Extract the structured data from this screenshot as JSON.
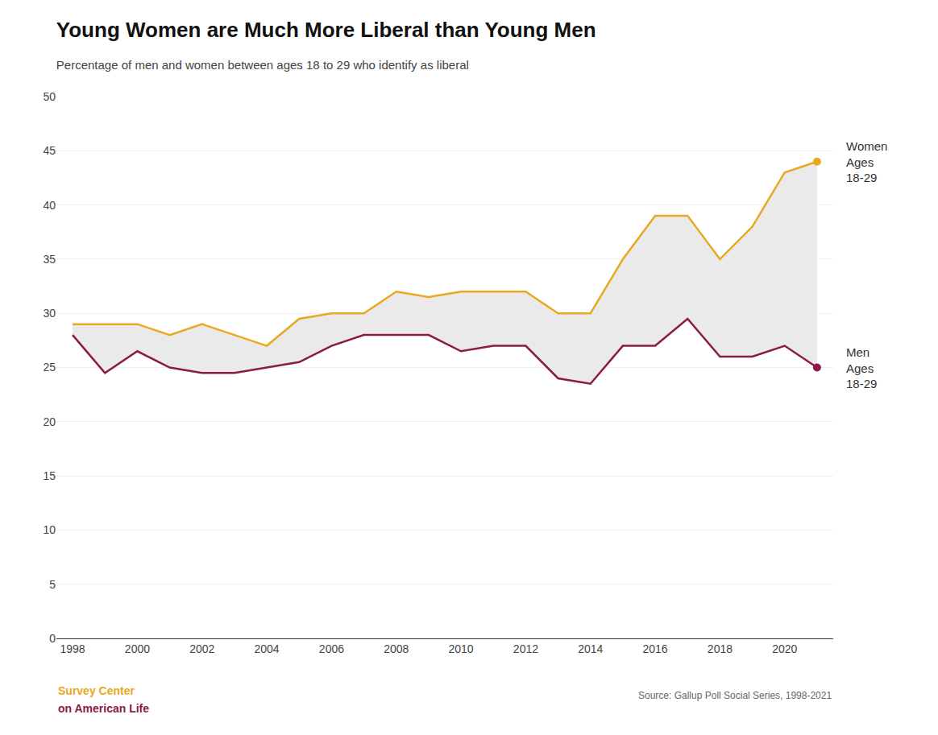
{
  "chart_data": {
    "type": "line",
    "title": "Young Women are Much More Liberal than Young Men",
    "subtitle": "Percentage of men and women between ages 18 to 29 who identify as liberal",
    "x": [
      1998,
      1999,
      2000,
      2001,
      2002,
      2003,
      2004,
      2005,
      2006,
      2007,
      2008,
      2009,
      2010,
      2011,
      2012,
      2013,
      2014,
      2015,
      2016,
      2017,
      2018,
      2019,
      2020,
      2021
    ],
    "series": [
      {
        "name": "Women\nAges\n18-29",
        "color": "#E8A820",
        "values": [
          29,
          29,
          29,
          28,
          29,
          28,
          27,
          29.5,
          30,
          30,
          32,
          31.5,
          32,
          32,
          32,
          30,
          30,
          35,
          39,
          39,
          35,
          38,
          43,
          44
        ]
      },
      {
        "name": "Men\nAges\n18-29",
        "color": "#8B1A4A",
        "values": [
          28,
          24.5,
          26.5,
          25,
          24.5,
          24.5,
          25,
          25.5,
          27,
          28,
          28,
          28,
          26.5,
          27,
          27,
          24,
          23.5,
          27,
          27,
          29.5,
          26,
          26,
          27,
          25
        ]
      }
    ],
    "color": "#EAEAEA",
    "xlim": [
      1997.5,
      2021.5
    ],
    "xticks": [
      1998,
      2000,
      2002,
      2004,
      2006,
      2008,
      2010,
      2012,
      2014,
      2016,
      2018,
      2020
    ],
    "ylim": [
      0,
      50
    ],
    "yticks": [
      0,
      5,
      10,
      15,
      20,
      25,
      30,
      35,
      40,
      45,
      50
    ],
    "grid": true,
    "annotations": [
      "Source: Gallup Poll Social Series, 1998-2021",
      "Survey Center",
      "on American Life"
    ]
  }
}
